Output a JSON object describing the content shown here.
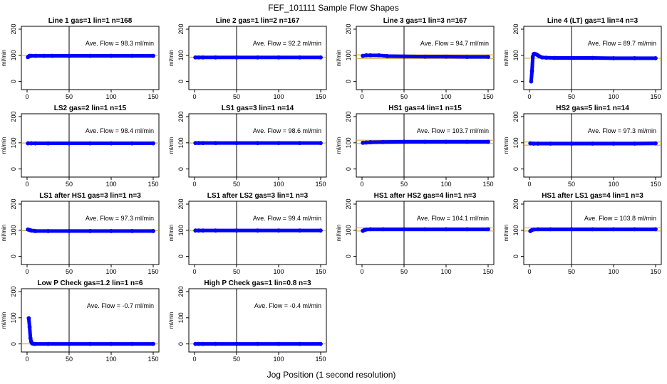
{
  "figure": {
    "title": "FEF_101111  Sample Flow Shapes",
    "xlabel": "Jog Position (1 second resolution)"
  },
  "colors": {
    "points": "#0000ff",
    "avg_line": "#d4a017",
    "axes": "#000000"
  },
  "chart_data": [
    {
      "type": "scatter",
      "title": "Line 1 gas=1 lin=1 n=168",
      "annotation": "Ave. Flow = 98.3  ml/min",
      "ylabel": "ml/min",
      "xlim": [
        0,
        150
      ],
      "ylim": [
        -20,
        200
      ],
      "xticks": [
        0,
        50,
        100,
        150
      ],
      "yticks": [
        0,
        100,
        200
      ],
      "vline_x": 50,
      "avg_line": [
        100
      ],
      "x": [
        1,
        2,
        3,
        5,
        10,
        20,
        30,
        50,
        75,
        100,
        125,
        150
      ],
      "y": [
        93,
        96,
        98,
        98,
        98,
        98,
        98,
        98,
        98,
        98,
        98,
        98
      ]
    },
    {
      "type": "scatter",
      "title": "Line 2 gas=1 lin=2 n=167",
      "annotation": "Ave. Flow = 92.2  ml/min",
      "ylabel": "ml/min",
      "xlim": [
        0,
        150
      ],
      "ylim": [
        -20,
        200
      ],
      "xticks": [
        0,
        50,
        100,
        150
      ],
      "yticks": [
        0,
        100,
        200
      ],
      "vline_x": 50,
      "avg_line": [
        93
      ],
      "x": [
        1,
        5,
        10,
        25,
        50,
        75,
        100,
        125,
        150
      ],
      "y": [
        92,
        92,
        92,
        92,
        92,
        92,
        92,
        92,
        92
      ]
    },
    {
      "type": "scatter",
      "title": "Line 3 gas=1 lin=3 n=167",
      "annotation": "Ave. Flow = 94.7  ml/min",
      "ylabel": "ml/min",
      "xlim": [
        0,
        150
      ],
      "ylim": [
        -20,
        200
      ],
      "xticks": [
        0,
        50,
        100,
        150
      ],
      "yticks": [
        0,
        100,
        200
      ],
      "vline_x": 50,
      "avg_line": [
        88,
        102
      ],
      "x": [
        1,
        5,
        10,
        20,
        30,
        50,
        75,
        100,
        125,
        150
      ],
      "y": [
        98,
        100,
        100,
        100,
        97,
        96,
        95,
        95,
        94,
        94
      ]
    },
    {
      "type": "scatter",
      "title": "Line 4 (LT) gas=1 lin=4 n=3",
      "annotation": "Ave. Flow = 89.7  ml/min",
      "ylabel": "ml/min",
      "xlim": [
        0,
        150
      ],
      "ylim": [
        -20,
        200
      ],
      "xticks": [
        0,
        50,
        100,
        150
      ],
      "yticks": [
        0,
        100,
        200
      ],
      "vline_x": 50,
      "avg_line": [
        89
      ],
      "x": [
        2,
        3,
        4,
        5,
        6,
        8,
        10,
        12,
        15,
        20,
        30,
        50,
        75,
        100,
        125,
        150
      ],
      "y": [
        0,
        40,
        95,
        105,
        106,
        104,
        100,
        96,
        92,
        91,
        90,
        90,
        90,
        89,
        89,
        89
      ]
    },
    {
      "type": "scatter",
      "title": "LS2 gas=2 lin=1 n=15",
      "annotation": "Ave. Flow = 98.4  ml/min",
      "ylabel": "ml/min",
      "xlim": [
        0,
        150
      ],
      "ylim": [
        -20,
        200
      ],
      "xticks": [
        0,
        50,
        100,
        150
      ],
      "yticks": [
        0,
        100,
        200
      ],
      "vline_x": 50,
      "avg_line": [
        99
      ],
      "x": [
        1,
        5,
        10,
        25,
        50,
        75,
        100,
        125,
        150
      ],
      "y": [
        98,
        98,
        98,
        98,
        98,
        98,
        98,
        98,
        98
      ]
    },
    {
      "type": "scatter",
      "title": "LS1 gas=3 lin=1 n=14",
      "annotation": "Ave. Flow = 98.6  ml/min",
      "ylabel": "ml/min",
      "xlim": [
        0,
        150
      ],
      "ylim": [
        -20,
        200
      ],
      "xticks": [
        0,
        50,
        100,
        150
      ],
      "yticks": [
        0,
        100,
        200
      ],
      "vline_x": 50,
      "avg_line": [
        99
      ],
      "x": [
        1,
        5,
        10,
        25,
        50,
        75,
        100,
        125,
        150
      ],
      "y": [
        99,
        99,
        99,
        99,
        99,
        99,
        99,
        99,
        99
      ]
    },
    {
      "type": "scatter",
      "title": "HS1 gas=4 lin=1 n=15",
      "annotation": "Ave. Flow = 103.7  ml/min",
      "ylabel": "ml/min",
      "xlim": [
        0,
        150
      ],
      "ylim": [
        -20,
        200
      ],
      "xticks": [
        0,
        50,
        100,
        150
      ],
      "yticks": [
        0,
        100,
        200
      ],
      "vline_x": 50,
      "avg_line": [
        97,
        110
      ],
      "x": [
        1,
        5,
        10,
        25,
        50,
        75,
        100,
        125,
        150
      ],
      "y": [
        100,
        101,
        102,
        103,
        104,
        104,
        104,
        104,
        104
      ]
    },
    {
      "type": "scatter",
      "title": "HS2 gas=5 lin=1 n=14",
      "annotation": "Ave. Flow = 97.3  ml/min",
      "ylabel": "ml/min",
      "xlim": [
        0,
        150
      ],
      "ylim": [
        -20,
        200
      ],
      "xticks": [
        0,
        50,
        100,
        150
      ],
      "yticks": [
        0,
        100,
        200
      ],
      "vline_x": 50,
      "avg_line": [
        91,
        103
      ],
      "x": [
        1,
        5,
        10,
        25,
        50,
        75,
        100,
        125,
        150
      ],
      "y": [
        98,
        97,
        97,
        97,
        97,
        97,
        97,
        97,
        98
      ]
    },
    {
      "type": "scatter",
      "title": "LS1 after HS1 gas=3 lin=1 n=3",
      "annotation": "Ave. Flow = 97.3  ml/min",
      "ylabel": "ml/min",
      "xlim": [
        0,
        150
      ],
      "ylim": [
        -20,
        200
      ],
      "xticks": [
        0,
        50,
        100,
        150
      ],
      "yticks": [
        0,
        100,
        200
      ],
      "vline_x": 50,
      "avg_line": [
        98
      ],
      "x": [
        1,
        3,
        5,
        8,
        10,
        25,
        50,
        75,
        100,
        125,
        150
      ],
      "y": [
        103,
        101,
        99,
        98,
        97,
        97,
        97,
        97,
        97,
        97,
        97
      ]
    },
    {
      "type": "scatter",
      "title": "LS1 after LS2 gas=3 lin=1 n=3",
      "annotation": "Ave. Flow = 99.4  ml/min",
      "ylabel": "ml/min",
      "xlim": [
        0,
        150
      ],
      "ylim": [
        -20,
        200
      ],
      "xticks": [
        0,
        50,
        100,
        150
      ],
      "yticks": [
        0,
        100,
        200
      ],
      "vline_x": 50,
      "avg_line": [
        99
      ],
      "x": [
        1,
        5,
        10,
        25,
        50,
        75,
        100,
        125,
        150
      ],
      "y": [
        99,
        99,
        99,
        99,
        99,
        99,
        99,
        99,
        99
      ]
    },
    {
      "type": "scatter",
      "title": "HS1 after HS2 gas=4 lin=1 n=3",
      "annotation": "Ave. Flow = 104.1  ml/min",
      "ylabel": "ml/min",
      "xlim": [
        0,
        150
      ],
      "ylim": [
        -20,
        200
      ],
      "xticks": [
        0,
        50,
        100,
        150
      ],
      "yticks": [
        0,
        100,
        200
      ],
      "vline_x": 50,
      "avg_line": [
        97,
        109
      ],
      "x": [
        1,
        3,
        5,
        10,
        25,
        50,
        75,
        100,
        125,
        150
      ],
      "y": [
        98,
        101,
        103,
        104,
        104,
        104,
        104,
        104,
        104,
        104
      ]
    },
    {
      "type": "scatter",
      "title": "HS1 after LS1 gas=4 lin=1 n=3",
      "annotation": "Ave. Flow = 103.8  ml/min",
      "ylabel": "ml/min",
      "xlim": [
        0,
        150
      ],
      "ylim": [
        -20,
        200
      ],
      "xticks": [
        0,
        50,
        100,
        150
      ],
      "yticks": [
        0,
        100,
        200
      ],
      "vline_x": 50,
      "avg_line": [
        97,
        109
      ],
      "x": [
        1,
        3,
        5,
        10,
        25,
        50,
        75,
        100,
        125,
        150
      ],
      "y": [
        97,
        101,
        103,
        104,
        104,
        104,
        104,
        104,
        104,
        104
      ]
    },
    {
      "type": "scatter",
      "title": "Low P Check gas=1.2 lin=1 n=6",
      "annotation": "Ave. Flow = -0.7  ml/min",
      "ylabel": "ml/min",
      "xlim": [
        0,
        150
      ],
      "ylim": [
        -20,
        200
      ],
      "xticks": [
        0,
        50,
        100,
        150
      ],
      "yticks": [
        0,
        100,
        200
      ],
      "vline_x": 50,
      "avg_line": [
        0
      ],
      "x": [
        2,
        3,
        4,
        5,
        6,
        8,
        10,
        25,
        50,
        75,
        100,
        125,
        150
      ],
      "y": [
        98,
        65,
        22,
        8,
        2,
        0,
        0,
        0,
        0,
        0,
        0,
        0,
        0
      ]
    },
    {
      "type": "scatter",
      "title": "High P Check gas=1 lin=0.8 n=3",
      "annotation": "Ave. Flow = -0.4  ml/min",
      "ylabel": "ml/min",
      "xlim": [
        0,
        150
      ],
      "ylim": [
        -20,
        200
      ],
      "xticks": [
        0,
        50,
        100,
        150
      ],
      "yticks": [
        0,
        100,
        200
      ],
      "vline_x": 50,
      "avg_line": [
        0
      ],
      "x": [
        1,
        5,
        10,
        25,
        50,
        75,
        100,
        125,
        150
      ],
      "y": [
        0,
        0,
        0,
        0,
        0,
        0,
        0,
        0,
        0
      ]
    }
  ]
}
